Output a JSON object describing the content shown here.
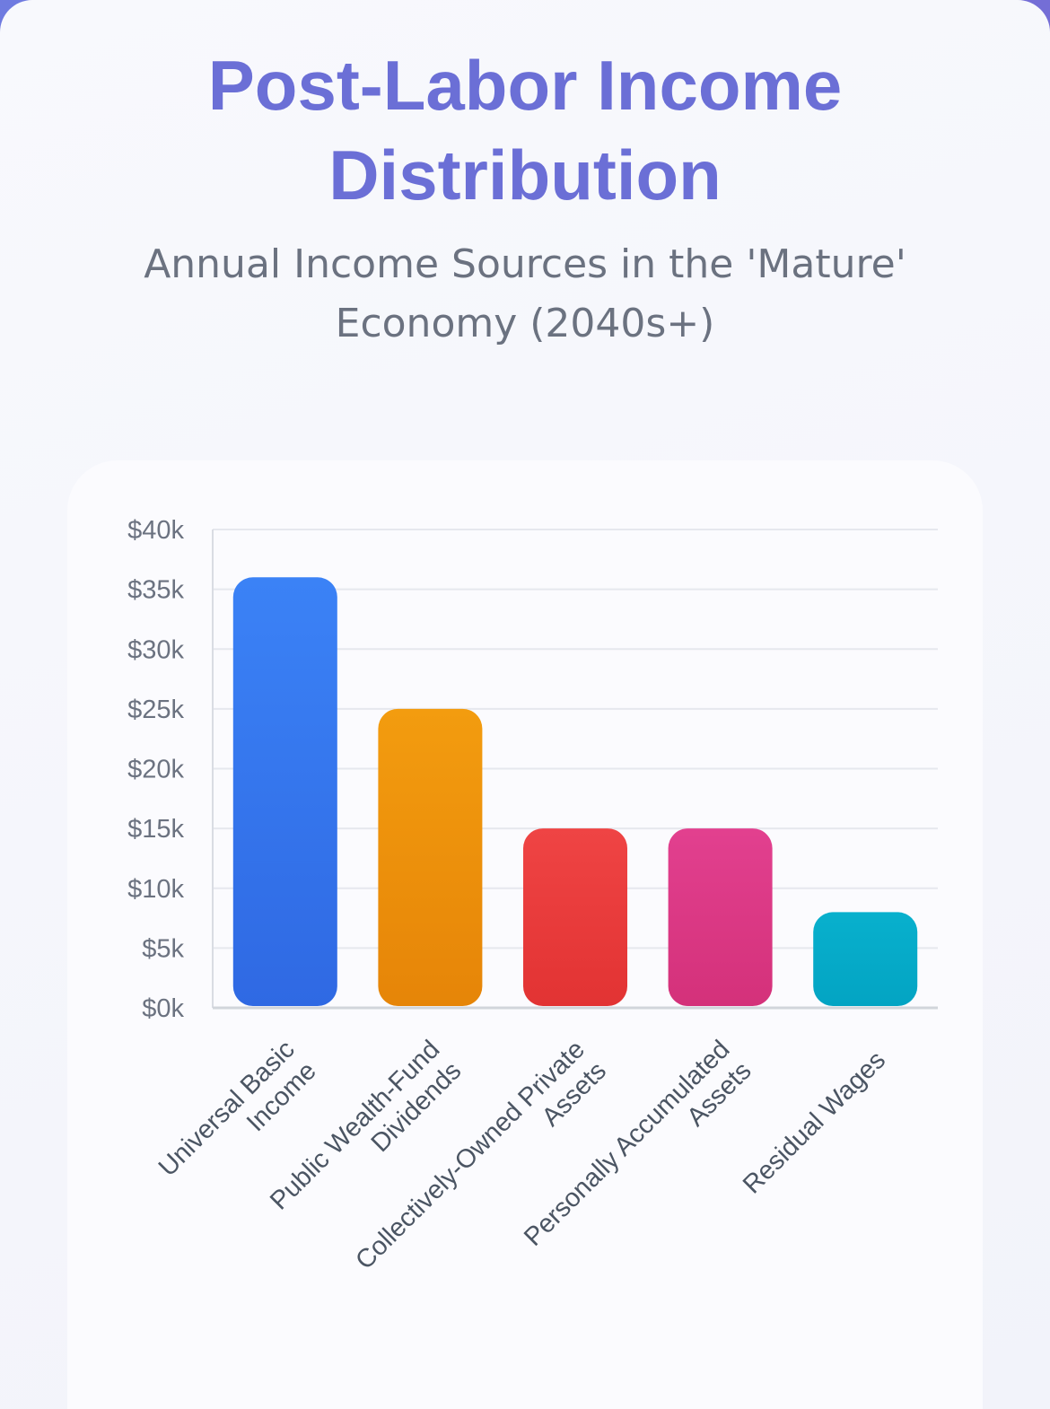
{
  "header": {
    "title_lines": [
      "Post-Labor Income",
      "Distribution"
    ],
    "subtitle_lines": [
      "Annual Income Sources in the 'Mature'",
      "Economy (2040s+)"
    ]
  },
  "chart_data": {
    "type": "bar",
    "title": "Post-Labor Income Distribution",
    "subtitle": "Annual Income Sources in the 'Mature' Economy (2040s+)",
    "categories": [
      "Universal Basic Income",
      "Public Wealth-Fund Dividends",
      "Collectively-Owned Private Assets",
      "Personally Accumulated Assets",
      "Residual Wages"
    ],
    "category_label_lines": [
      [
        "Universal Basic",
        "Income"
      ],
      [
        "Public Wealth-Fund",
        "Dividends"
      ],
      [
        "Collectively-Owned Private",
        "Assets"
      ],
      [
        "Personally Accumulated",
        "Assets"
      ],
      [
        "Residual Wages"
      ]
    ],
    "values": [
      36000,
      25000,
      15000,
      15000,
      8000
    ],
    "colors": [
      [
        "#3b82f6",
        "#2f69e3"
      ],
      [
        "#f39c0f",
        "#e68508"
      ],
      [
        "#ef4444",
        "#e23333"
      ],
      [
        "#e2408f",
        "#d4317a"
      ],
      [
        "#08b0cd",
        "#03a4c3"
      ]
    ],
    "xlabel": "",
    "ylabel": "",
    "ylim": [
      0,
      40000
    ],
    "yticks": [
      0,
      5000,
      10000,
      15000,
      20000,
      25000,
      30000,
      35000,
      40000
    ],
    "ytick_labels": [
      "$0k",
      "$5k",
      "$10k",
      "$15k",
      "$20k",
      "$25k",
      "$30k",
      "$35k",
      "$40k"
    ],
    "grid": true,
    "legend": "none"
  }
}
